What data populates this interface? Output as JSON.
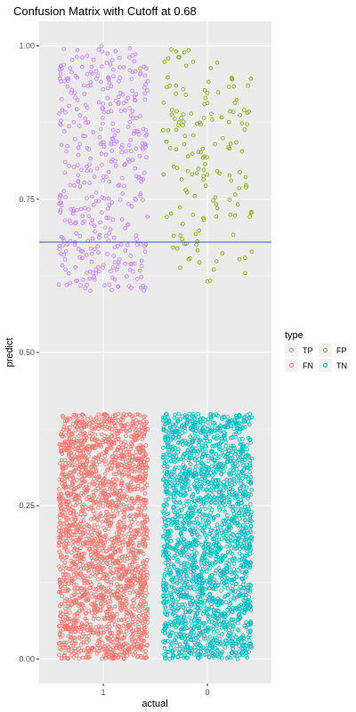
{
  "chart_data": {
    "type": "scatter",
    "title": "Confusion Matrix with Cutoff at 0.68",
    "xlabel": "actual",
    "ylabel": "predict",
    "categories": [
      "1",
      "0"
    ],
    "ylim": [
      -0.04,
      1.04
    ],
    "yticks": [
      "0.00",
      "0.25",
      "0.50",
      "0.75",
      "1.00"
    ],
    "ytick_values": [
      0,
      0.25,
      0.5,
      0.75,
      1.0
    ],
    "cutoff": 0.68,
    "cutoff_color": "#3b4fd8",
    "grid": true,
    "jitter_width": 0.4,
    "legend": {
      "title": "type",
      "placement": "right",
      "entries": [
        "TP",
        "FP",
        "FN",
        "TN"
      ]
    },
    "series": [
      {
        "name": "TP",
        "actual": "1",
        "y_range": [
          0.6,
          1.0
        ],
        "approx_count": 420,
        "color": "#C77CFF"
      },
      {
        "name": "FP",
        "actual": "0",
        "y_range": [
          0.6,
          1.0
        ],
        "approx_count": 160,
        "color": "#7CAE00"
      },
      {
        "name": "FN",
        "actual": "1",
        "y_range": [
          0.0,
          0.4
        ],
        "approx_count": 2200,
        "color": "#F8766D"
      },
      {
        "name": "TN",
        "actual": "0",
        "y_range": [
          0.0,
          0.4
        ],
        "approx_count": 2200,
        "color": "#00BFC4"
      }
    ]
  }
}
